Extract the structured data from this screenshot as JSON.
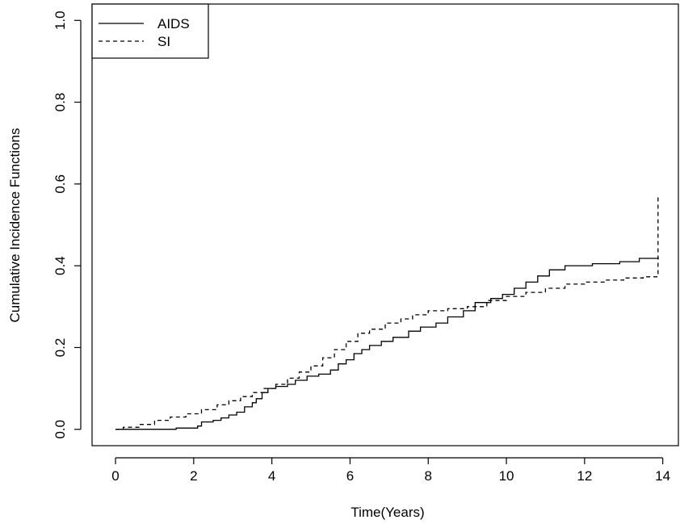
{
  "chart_data": {
    "type": "line",
    "xlabel": "Time(Years)",
    "ylabel": "Cumulative Incidence Functions",
    "xlim": [
      -0.6,
      14.4
    ],
    "ylim": [
      -0.04,
      1.04
    ],
    "x_ticks": [
      "0",
      "2",
      "4",
      "6",
      "8",
      "10",
      "12",
      "14"
    ],
    "y_ticks": [
      "0.0",
      "0.2",
      "0.4",
      "0.6",
      "0.8",
      "1.0"
    ],
    "x_tick_values": [
      0,
      2,
      4,
      6,
      8,
      10,
      12,
      14
    ],
    "y_tick_values": [
      0,
      0.2,
      0.4,
      0.6,
      0.8,
      1.0
    ],
    "legend": {
      "position": "top-left",
      "entries": [
        "AIDS",
        "SI"
      ]
    },
    "series": [
      {
        "name": "AIDS",
        "style": "solid",
        "color": "#000000",
        "x": [
          0,
          1.55,
          2.1,
          2.2,
          2.5,
          2.7,
          2.9,
          3.1,
          3.3,
          3.5,
          3.6,
          3.75,
          3.9,
          4.1,
          4.4,
          4.6,
          4.9,
          5.2,
          5.5,
          5.7,
          5.9,
          6.1,
          6.3,
          6.5,
          6.8,
          7.1,
          7.5,
          7.8,
          8.2,
          8.5,
          8.9,
          9.2,
          9.6,
          9.9,
          10.2,
          10.5,
          10.8,
          11.1,
          11.5,
          12.2,
          12.9,
          13.4,
          13.9
        ],
        "y": [
          0,
          0.003,
          0.008,
          0.018,
          0.022,
          0.028,
          0.035,
          0.042,
          0.055,
          0.065,
          0.075,
          0.09,
          0.1,
          0.105,
          0.11,
          0.12,
          0.13,
          0.135,
          0.145,
          0.16,
          0.17,
          0.185,
          0.195,
          0.205,
          0.215,
          0.225,
          0.24,
          0.25,
          0.26,
          0.275,
          0.29,
          0.31,
          0.32,
          0.33,
          0.345,
          0.36,
          0.375,
          0.39,
          0.4,
          0.405,
          0.41,
          0.418,
          0.418
        ]
      },
      {
        "name": "SI",
        "style": "dashed",
        "color": "#000000",
        "x": [
          0,
          0.2,
          0.6,
          1.0,
          1.4,
          1.8,
          2.2,
          2.6,
          2.9,
          3.2,
          3.5,
          3.8,
          4.1,
          4.4,
          4.7,
          5.0,
          5.3,
          5.6,
          5.9,
          6.2,
          6.5,
          6.9,
          7.3,
          7.6,
          8.0,
          8.5,
          9.0,
          9.5,
          10.0,
          10.5,
          11.0,
          11.5,
          12.0,
          12.5,
          13.0,
          13.5,
          13.88,
          13.88
        ],
        "y": [
          0,
          0.005,
          0.012,
          0.022,
          0.03,
          0.038,
          0.048,
          0.06,
          0.07,
          0.08,
          0.09,
          0.1,
          0.11,
          0.125,
          0.14,
          0.155,
          0.175,
          0.195,
          0.215,
          0.235,
          0.245,
          0.26,
          0.27,
          0.28,
          0.29,
          0.295,
          0.3,
          0.315,
          0.325,
          0.335,
          0.345,
          0.355,
          0.36,
          0.365,
          0.37,
          0.373,
          0.375,
          0.575
        ]
      }
    ]
  }
}
